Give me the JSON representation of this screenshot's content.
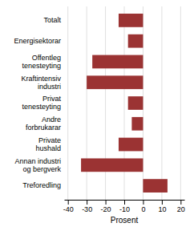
{
  "chart_data": {
    "type": "bar",
    "orientation": "horizontal",
    "categories": [
      "Totalt",
      "Energisektorar",
      "Offentleg\ntenesteyting",
      "Kraftintensiv\nindustri",
      "Privat\ntenesteyting",
      "Andre\nforbrukarar",
      "Private\nhushald",
      "Annan industri\nog bergverk",
      "Treforedling"
    ],
    "values": [
      -13,
      -8,
      -27,
      -30,
      -8,
      -6,
      -13,
      -33,
      13
    ],
    "color": "#9b3333",
    "xlabel": "Prosent",
    "xlim": [
      -42,
      22
    ],
    "xticks": [
      -40,
      -30,
      -20,
      -10,
      0,
      10,
      20
    ],
    "grid": true
  }
}
